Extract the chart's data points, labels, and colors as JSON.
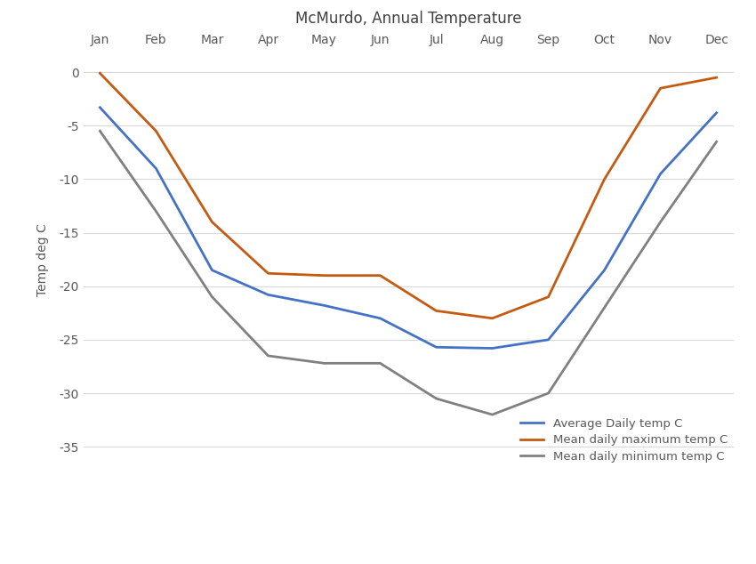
{
  "title": "McMurdo, Annual Temperature",
  "months": [
    "Jan",
    "Feb",
    "Mar",
    "Apr",
    "May",
    "Jun",
    "Jul",
    "Aug",
    "Sep",
    "Oct",
    "Nov",
    "Dec"
  ],
  "avg_daily": [
    -3.3,
    -9.0,
    -18.5,
    -20.8,
    -21.8,
    -23.0,
    -25.7,
    -25.8,
    -25.0,
    -18.5,
    -9.5,
    -3.8
  ],
  "mean_max": [
    -0.1,
    -5.5,
    -14.0,
    -18.8,
    -19.0,
    -19.0,
    -22.3,
    -23.0,
    -21.0,
    -10.0,
    -1.5,
    -0.5
  ],
  "mean_min": [
    -5.5,
    -13.0,
    -21.0,
    -26.5,
    -27.2,
    -27.2,
    -30.5,
    -32.0,
    -30.0,
    -22.0,
    -14.0,
    -6.5
  ],
  "avg_color": "#4472c4",
  "max_color": "#c55a11",
  "min_color": "#808080",
  "ylabel": "Temp deg C",
  "ylim": [
    -37,
    2
  ],
  "yticks": [
    0,
    -5,
    -10,
    -15,
    -20,
    -25,
    -30,
    -35
  ],
  "bg_color": "#ffffff",
  "grid_color": "#d9d9d9",
  "title_color": "#404040",
  "axis_color": "#595959",
  "legend_labels": [
    "Average Daily temp C",
    "Mean daily maximum temp C",
    "Mean daily minimum temp C"
  ],
  "line_width": 2.0,
  "figsize": [
    8.5,
    6.34
  ],
  "dpi": 100
}
